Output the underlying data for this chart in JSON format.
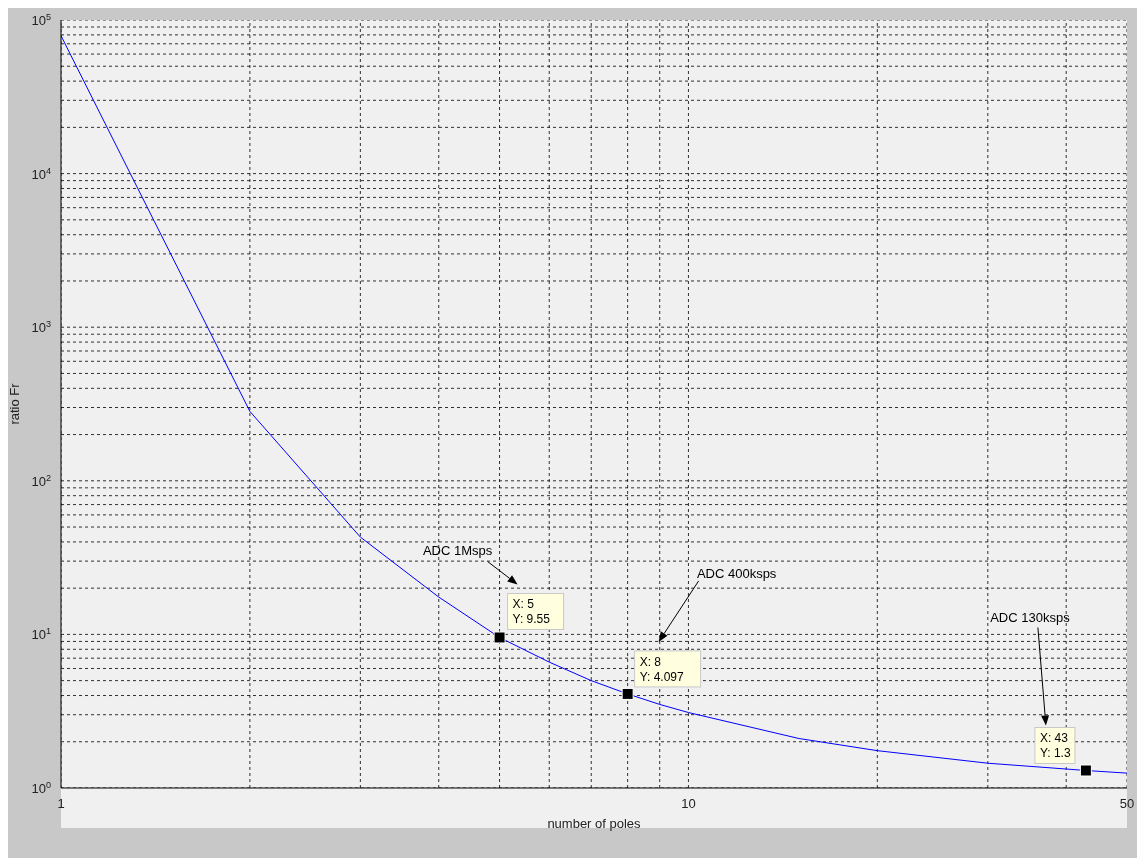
{
  "chart_data": {
    "type": "line",
    "xlabel": "number of poles",
    "ylabel": "ratio Fr",
    "log": "xy",
    "grid": true,
    "legend": false,
    "xlim": [
      1,
      50
    ],
    "ylim": [
      1,
      100000
    ],
    "xticks": [
      1,
      {
        "value": 2,
        "label": null
      },
      {
        "value": 3,
        "label": null
      },
      {
        "value": 4,
        "label": null
      },
      {
        "value": 5,
        "label": null
      },
      {
        "value": 6,
        "label": null
      },
      {
        "value": 7,
        "label": null
      },
      {
        "value": 8,
        "label": null
      },
      {
        "value": 9,
        "label": null
      },
      10,
      {
        "value": 20,
        "label": null
      },
      {
        "value": 30,
        "label": null
      },
      {
        "value": 40,
        "label": null
      },
      50
    ],
    "yticks": [
      {
        "value": 1,
        "label": "10$^{0}$"
      },
      {
        "value": 2,
        "label": null
      },
      {
        "value": 3,
        "label": null
      },
      {
        "value": 4,
        "label": null
      },
      {
        "value": 5,
        "label": null
      },
      {
        "value": 6,
        "label": null
      },
      {
        "value": 7,
        "label": null
      },
      {
        "value": 8,
        "label": null
      },
      {
        "value": 9,
        "label": null
      },
      {
        "value": 10,
        "label": "10$^{1}$"
      },
      {
        "value": 20,
        "label": null
      },
      {
        "value": 30,
        "label": null
      },
      {
        "value": 40,
        "label": null
      },
      {
        "value": 50,
        "label": null
      },
      {
        "value": 60,
        "label": null
      },
      {
        "value": 70,
        "label": null
      },
      {
        "value": 80,
        "label": null
      },
      {
        "value": 90,
        "label": null
      },
      {
        "value": 100,
        "label": "10$^{2}$"
      },
      {
        "value": 200,
        "label": null
      },
      {
        "value": 300,
        "label": null
      },
      {
        "value": 400,
        "label": null
      },
      {
        "value": 500,
        "label": null
      },
      {
        "value": 600,
        "label": null
      },
      {
        "value": 700,
        "label": null
      },
      {
        "value": 800,
        "label": null
      },
      {
        "value": 900,
        "label": null
      },
      {
        "value": 1000,
        "label": "10$^{3}$"
      },
      {
        "value": 2000,
        "label": null
      },
      {
        "value": 3000,
        "label": null
      },
      {
        "value": 4000,
        "label": null
      },
      {
        "value": 5000,
        "label": null
      },
      {
        "value": 6000,
        "label": null
      },
      {
        "value": 7000,
        "label": null
      },
      {
        "value": 8000,
        "label": null
      },
      {
        "value": 9000,
        "label": null
      },
      {
        "value": 10000,
        "label": "10$^{4}$"
      },
      {
        "value": 20000,
        "label": null
      },
      {
        "value": 30000,
        "label": null
      },
      {
        "value": 40000,
        "label": null
      },
      {
        "value": 50000,
        "label": null
      },
      {
        "value": 60000,
        "label": null
      },
      {
        "value": 70000,
        "label": null
      },
      {
        "value": 80000,
        "label": null
      },
      {
        "value": 90000,
        "label": null
      },
      {
        "value": 100000,
        "label": "10$^{5}$"
      }
    ],
    "series": [
      {
        "type": "line",
        "color": "#0000ff",
        "marker": "none",
        "x": [
          1,
          2,
          3,
          4,
          5,
          6,
          7,
          8,
          9,
          10,
          15,
          20,
          30,
          43,
          50
        ],
        "values": [
          79000,
          283,
          43,
          17.5,
          9.55,
          6.6,
          5.0,
          4.097,
          3.5,
          3.1,
          2.1,
          1.75,
          1.45,
          1.3,
          1.25
        ]
      },
      {
        "type": "scatter",
        "color": "#000000",
        "marker": "square",
        "x": [
          5,
          8,
          43
        ],
        "values": [
          9.55,
          4.097,
          1.3
        ]
      }
    ],
    "annotations": [
      "ADC 1Msps",
      "ADC 400ksps",
      "ADC 130ksps",
      {
        "text": "X: 5\nY: 9.55",
        "x": 5,
        "y": 9.55
      },
      {
        "text": "X: 8\nY: 4.097",
        "x": 8,
        "y": 4.097
      },
      {
        "text": "X: 43\nY: 1.3",
        "x": 43,
        "y": 1.3
      }
    ]
  }
}
